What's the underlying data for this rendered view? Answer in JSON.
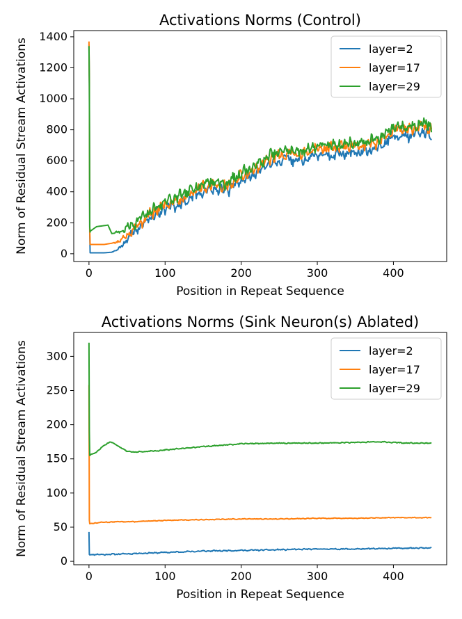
{
  "chart_data": [
    {
      "type": "line",
      "title": "Activations Norms (Control)",
      "xlabel": "Position in Repeat Sequence",
      "ylabel": "Norm of Residual Stream Activations",
      "xlim": [
        -20,
        470
      ],
      "ylim": [
        -50,
        1440
      ],
      "xticks": [
        0,
        100,
        200,
        300,
        400
      ],
      "yticks": [
        0,
        200,
        400,
        600,
        800,
        1000,
        1200,
        1400
      ],
      "legend_position": "top-right",
      "x_max": 450,
      "series": [
        {
          "name": "layer=2",
          "color": "#1f77b4",
          "spike": [
            1350,
            1080,
            140,
            6
          ],
          "anchors": [
            [
              0,
              6
            ],
            [
              20,
              6
            ],
            [
              30,
              10
            ],
            [
              40,
              35
            ],
            [
              60,
              150
            ],
            [
              80,
              230
            ],
            [
              100,
              290
            ],
            [
              120,
              320
            ],
            [
              140,
              380
            ],
            [
              160,
              420
            ],
            [
              180,
              400
            ],
            [
              200,
              470
            ],
            [
              220,
              520
            ],
            [
              240,
              590
            ],
            [
              260,
              610
            ],
            [
              280,
              600
            ],
            [
              300,
              640
            ],
            [
              320,
              640
            ],
            [
              340,
              650
            ],
            [
              360,
              660
            ],
            [
              380,
              680
            ],
            [
              400,
              760
            ],
            [
              420,
              760
            ],
            [
              440,
              790
            ],
            [
              450,
              760
            ]
          ],
          "noise_amp": 40,
          "seed": 3
        },
        {
          "name": "layer=17",
          "color": "#ff7f0e",
          "spike": [
            1370,
            1100,
            160,
            60
          ],
          "anchors": [
            [
              0,
              60
            ],
            [
              20,
              60
            ],
            [
              30,
              68
            ],
            [
              40,
              80
            ],
            [
              60,
              170
            ],
            [
              80,
              250
            ],
            [
              100,
              320
            ],
            [
              120,
              350
            ],
            [
              140,
              410
            ],
            [
              160,
              450
            ],
            [
              180,
              430
            ],
            [
              200,
              500
            ],
            [
              220,
              550
            ],
            [
              240,
              620
            ],
            [
              260,
              650
            ],
            [
              280,
              640
            ],
            [
              300,
              680
            ],
            [
              320,
              680
            ],
            [
              340,
              690
            ],
            [
              360,
              700
            ],
            [
              380,
              720
            ],
            [
              400,
              800
            ],
            [
              420,
              800
            ],
            [
              440,
              830
            ],
            [
              450,
              800
            ]
          ],
          "noise_amp": 42,
          "seed": 5
        },
        {
          "name": "layer=29",
          "color": "#2ca02c",
          "spike": [
            1340,
            1100,
            175,
            140
          ],
          "anchors": [
            [
              0,
              140
            ],
            [
              10,
              175
            ],
            [
              25,
              185
            ],
            [
              30,
              130
            ],
            [
              45,
              150
            ],
            [
              60,
              200
            ],
            [
              80,
              270
            ],
            [
              100,
              340
            ],
            [
              120,
              370
            ],
            [
              140,
              430
            ],
            [
              160,
              470
            ],
            [
              180,
              450
            ],
            [
              200,
              520
            ],
            [
              220,
              570
            ],
            [
              240,
              640
            ],
            [
              260,
              670
            ],
            [
              280,
              660
            ],
            [
              300,
              700
            ],
            [
              320,
              700
            ],
            [
              340,
              710
            ],
            [
              360,
              720
            ],
            [
              380,
              740
            ],
            [
              400,
              820
            ],
            [
              420,
              820
            ],
            [
              440,
              850
            ],
            [
              450,
              810
            ]
          ],
          "noise_amp": 42,
          "seed": 7
        }
      ]
    },
    {
      "type": "line",
      "title": "Activations Norms (Sink Neuron(s) Ablated)",
      "xlabel": "Position in Repeat Sequence",
      "ylabel": "Norm of Residual Stream Activations",
      "xlim": [
        -20,
        470
      ],
      "ylim": [
        -5,
        335
      ],
      "xticks": [
        0,
        100,
        200,
        300,
        400
      ],
      "yticks": [
        0,
        50,
        100,
        150,
        200,
        250,
        300
      ],
      "legend_position": "top-right",
      "x_max": 450,
      "series": [
        {
          "name": "layer=2",
          "color": "#1f77b4",
          "spike": [
            43,
            10
          ],
          "anchors": [
            [
              0,
              10
            ],
            [
              20,
              10
            ],
            [
              50,
              11
            ],
            [
              100,
              13
            ],
            [
              150,
              15
            ],
            [
              200,
              16
            ],
            [
              250,
              17
            ],
            [
              300,
              18
            ],
            [
              350,
              18
            ],
            [
              400,
              19
            ],
            [
              450,
              20
            ]
          ],
          "noise_amp": 1,
          "seed": 11
        },
        {
          "name": "layer=17",
          "color": "#ff7f0e",
          "spike": [
            258,
            60,
            55
          ],
          "anchors": [
            [
              0,
              55
            ],
            [
              15,
              57
            ],
            [
              40,
              58
            ],
            [
              60,
              58
            ],
            [
              100,
              60
            ],
            [
              150,
              61
            ],
            [
              200,
              62
            ],
            [
              250,
              62
            ],
            [
              300,
              63
            ],
            [
              350,
              63
            ],
            [
              400,
              64
            ],
            [
              450,
              64
            ]
          ],
          "noise_amp": 0.6,
          "seed": 13
        },
        {
          "name": "layer=29",
          "color": "#2ca02c",
          "spike": [
            320,
            190,
            155
          ],
          "anchors": [
            [
              0,
              155
            ],
            [
              10,
              160
            ],
            [
              20,
              170
            ],
            [
              28,
              175
            ],
            [
              40,
              168
            ],
            [
              50,
              161
            ],
            [
              60,
              160
            ],
            [
              80,
              161
            ],
            [
              100,
              163
            ],
            [
              150,
              168
            ],
            [
              200,
              172
            ],
            [
              250,
              173
            ],
            [
              300,
              173
            ],
            [
              350,
              174
            ],
            [
              380,
              175
            ],
            [
              420,
              173
            ],
            [
              450,
              173
            ]
          ],
          "noise_amp": 0.8,
          "seed": 17
        }
      ]
    }
  ]
}
